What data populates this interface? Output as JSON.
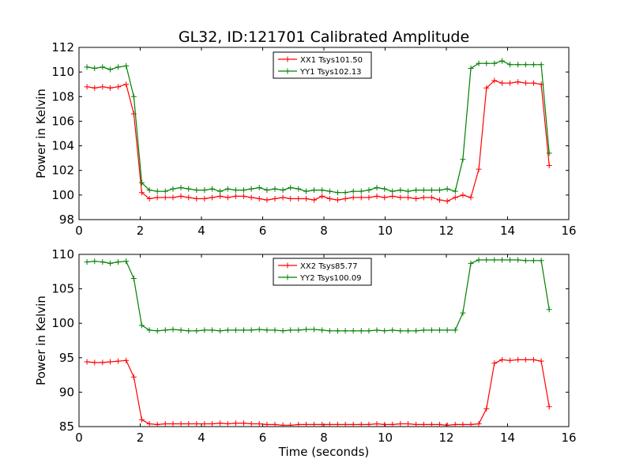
{
  "figure": {
    "title": "GL32, ID:121701 Calibrated Amplitude"
  },
  "chart_data": [
    {
      "type": "line",
      "title": "GL32, ID:121701 Calibrated Amplitude",
      "xlabel": "",
      "ylabel": "Power in Kelvin",
      "xlim": [
        0,
        16
      ],
      "ylim": [
        98,
        112
      ],
      "xticks": [
        "0",
        "2",
        "4",
        "6",
        "8",
        "10",
        "12",
        "14",
        "16"
      ],
      "yticks": [
        "98",
        "100",
        "102",
        "104",
        "106",
        "108",
        "110",
        "112"
      ],
      "legend_position": "top-center",
      "x": [
        0.26,
        0.51,
        0.77,
        1.02,
        1.28,
        1.54,
        1.79,
        2.05,
        2.3,
        2.56,
        2.82,
        3.07,
        3.33,
        3.58,
        3.84,
        4.1,
        4.35,
        4.61,
        4.86,
        5.12,
        5.38,
        5.63,
        5.89,
        6.14,
        6.4,
        6.66,
        6.91,
        7.17,
        7.42,
        7.68,
        7.94,
        8.19,
        8.45,
        8.7,
        8.96,
        9.22,
        9.47,
        9.73,
        9.98,
        10.24,
        10.5,
        10.75,
        11.01,
        11.26,
        11.52,
        11.78,
        12.03,
        12.29,
        12.54,
        12.8,
        13.06,
        13.31,
        13.57,
        13.82,
        14.08,
        14.34,
        14.59,
        14.85,
        15.1,
        15.36
      ],
      "series": [
        {
          "name": "XX1 Tsys101.50",
          "color": "#ff0000",
          "values": [
            108.8,
            108.7,
            108.8,
            108.7,
            108.8,
            109.0,
            106.6,
            100.2,
            99.7,
            99.8,
            99.8,
            99.8,
            99.9,
            99.8,
            99.7,
            99.7,
            99.8,
            99.9,
            99.8,
            99.9,
            99.9,
            99.8,
            99.7,
            99.6,
            99.7,
            99.8,
            99.7,
            99.7,
            99.7,
            99.6,
            99.9,
            99.7,
            99.6,
            99.7,
            99.8,
            99.8,
            99.8,
            99.9,
            99.8,
            99.9,
            99.8,
            99.8,
            99.7,
            99.8,
            99.8,
            99.6,
            99.5,
            99.8,
            100.0,
            99.8,
            102.1,
            108.7,
            109.3,
            109.1,
            109.1,
            109.2,
            109.1,
            109.1,
            109.0,
            102.4
          ]
        },
        {
          "name": "YY1 Tsys102.13",
          "color": "#008000",
          "values": [
            110.4,
            110.3,
            110.4,
            110.2,
            110.4,
            110.5,
            108.0,
            101.0,
            100.4,
            100.3,
            100.3,
            100.5,
            100.6,
            100.5,
            100.4,
            100.4,
            100.5,
            100.3,
            100.5,
            100.4,
            100.4,
            100.5,
            100.6,
            100.4,
            100.5,
            100.4,
            100.6,
            100.5,
            100.3,
            100.4,
            100.4,
            100.3,
            100.2,
            100.2,
            100.3,
            100.3,
            100.4,
            100.6,
            100.5,
            100.3,
            100.4,
            100.3,
            100.4,
            100.4,
            100.4,
            100.4,
            100.5,
            100.3,
            102.9,
            110.3,
            110.7,
            110.7,
            110.7,
            110.9,
            110.6,
            110.6,
            110.6,
            110.6,
            110.6,
            103.4
          ]
        }
      ]
    },
    {
      "type": "line",
      "title": "",
      "xlabel": "Time (seconds)",
      "ylabel": "Power in Kelvin",
      "xlim": [
        0,
        16
      ],
      "ylim": [
        85,
        110
      ],
      "xticks": [
        "0",
        "2",
        "4",
        "6",
        "8",
        "10",
        "12",
        "14",
        "16"
      ],
      "yticks": [
        "85",
        "90",
        "95",
        "100",
        "105",
        "110"
      ],
      "legend_position": "top-center",
      "x": [
        0.26,
        0.51,
        0.77,
        1.02,
        1.28,
        1.54,
        1.79,
        2.05,
        2.3,
        2.56,
        2.82,
        3.07,
        3.33,
        3.58,
        3.84,
        4.1,
        4.35,
        4.61,
        4.86,
        5.12,
        5.38,
        5.63,
        5.89,
        6.14,
        6.4,
        6.66,
        6.91,
        7.17,
        7.42,
        7.68,
        7.94,
        8.19,
        8.45,
        8.7,
        8.96,
        9.22,
        9.47,
        9.73,
        9.98,
        10.24,
        10.5,
        10.75,
        11.01,
        11.26,
        11.52,
        11.78,
        12.03,
        12.29,
        12.54,
        12.8,
        13.06,
        13.31,
        13.57,
        13.82,
        14.08,
        14.34,
        14.59,
        14.85,
        15.1,
        15.36
      ],
      "series": [
        {
          "name": "XX2 Tsys85.77",
          "color": "#ff0000",
          "values": [
            94.4,
            94.3,
            94.3,
            94.4,
            94.5,
            94.6,
            92.2,
            86.0,
            85.4,
            85.3,
            85.4,
            85.4,
            85.4,
            85.4,
            85.4,
            85.4,
            85.4,
            85.5,
            85.4,
            85.5,
            85.5,
            85.4,
            85.4,
            85.3,
            85.3,
            85.2,
            85.2,
            85.3,
            85.3,
            85.3,
            85.3,
            85.3,
            85.3,
            85.3,
            85.3,
            85.3,
            85.3,
            85.4,
            85.3,
            85.3,
            85.4,
            85.4,
            85.3,
            85.3,
            85.3,
            85.3,
            85.2,
            85.3,
            85.3,
            85.3,
            85.4,
            87.6,
            94.2,
            94.7,
            94.6,
            94.7,
            94.7,
            94.7,
            94.5,
            87.9
          ]
        },
        {
          "name": "YY2 Tsys100.09",
          "color": "#008000",
          "values": [
            108.9,
            109.0,
            108.9,
            108.7,
            108.9,
            109.0,
            106.5,
            99.7,
            99.0,
            98.9,
            99.0,
            99.1,
            99.0,
            98.9,
            98.9,
            99.0,
            99.0,
            98.9,
            99.0,
            99.0,
            99.0,
            99.0,
            99.1,
            99.0,
            99.0,
            98.9,
            99.0,
            99.0,
            99.1,
            99.1,
            99.0,
            98.9,
            98.9,
            98.9,
            98.9,
            98.9,
            98.9,
            99.0,
            98.9,
            99.0,
            98.9,
            98.9,
            98.9,
            99.0,
            99.0,
            99.0,
            99.0,
            99.0,
            101.5,
            108.7,
            109.2,
            109.2,
            109.2,
            109.2,
            109.2,
            109.2,
            109.1,
            109.1,
            109.1,
            102.0
          ]
        }
      ]
    }
  ]
}
